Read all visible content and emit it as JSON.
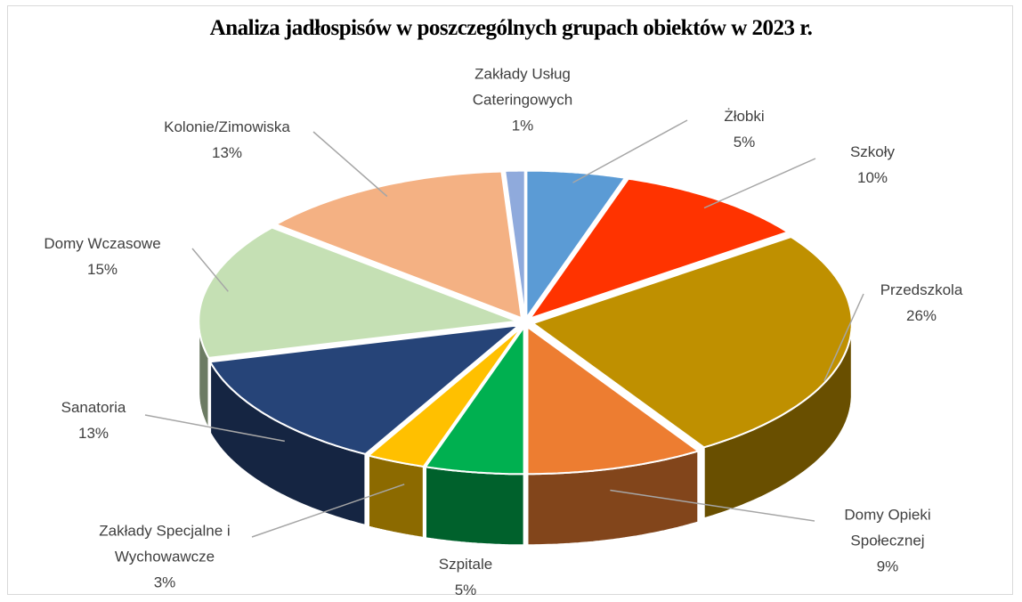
{
  "chart_data": {
    "type": "pie",
    "title": "Analiza jadłospisów w poszczególnych  grupach obiektów w 2023 r.",
    "categories": [
      "Żłobki",
      "Szkoły",
      "Przedszkola",
      "Domy Opieki Społecznej",
      "Szpitale",
      "Zakłady Specjalne i Wychowawcze",
      "Sanatoria",
      "Domy Wczasowe",
      "Kolonie/Zimowiska",
      "Zakłady Usług Cateringowych"
    ],
    "values": [
      5,
      10,
      26,
      9,
      5,
      3,
      13,
      15,
      13,
      1
    ],
    "value_labels": [
      "5%",
      "10%",
      "26%",
      "9%",
      "5%",
      "3%",
      "13%",
      "15%",
      "13%",
      "1%"
    ],
    "colors": [
      "#5b9bd5",
      "#ff3300",
      "#bf9000",
      "#ed7d31",
      "#00b050",
      "#ffc000",
      "#264478",
      "#c5e0b4",
      "#f4b183",
      "#8faadc"
    ]
  }
}
